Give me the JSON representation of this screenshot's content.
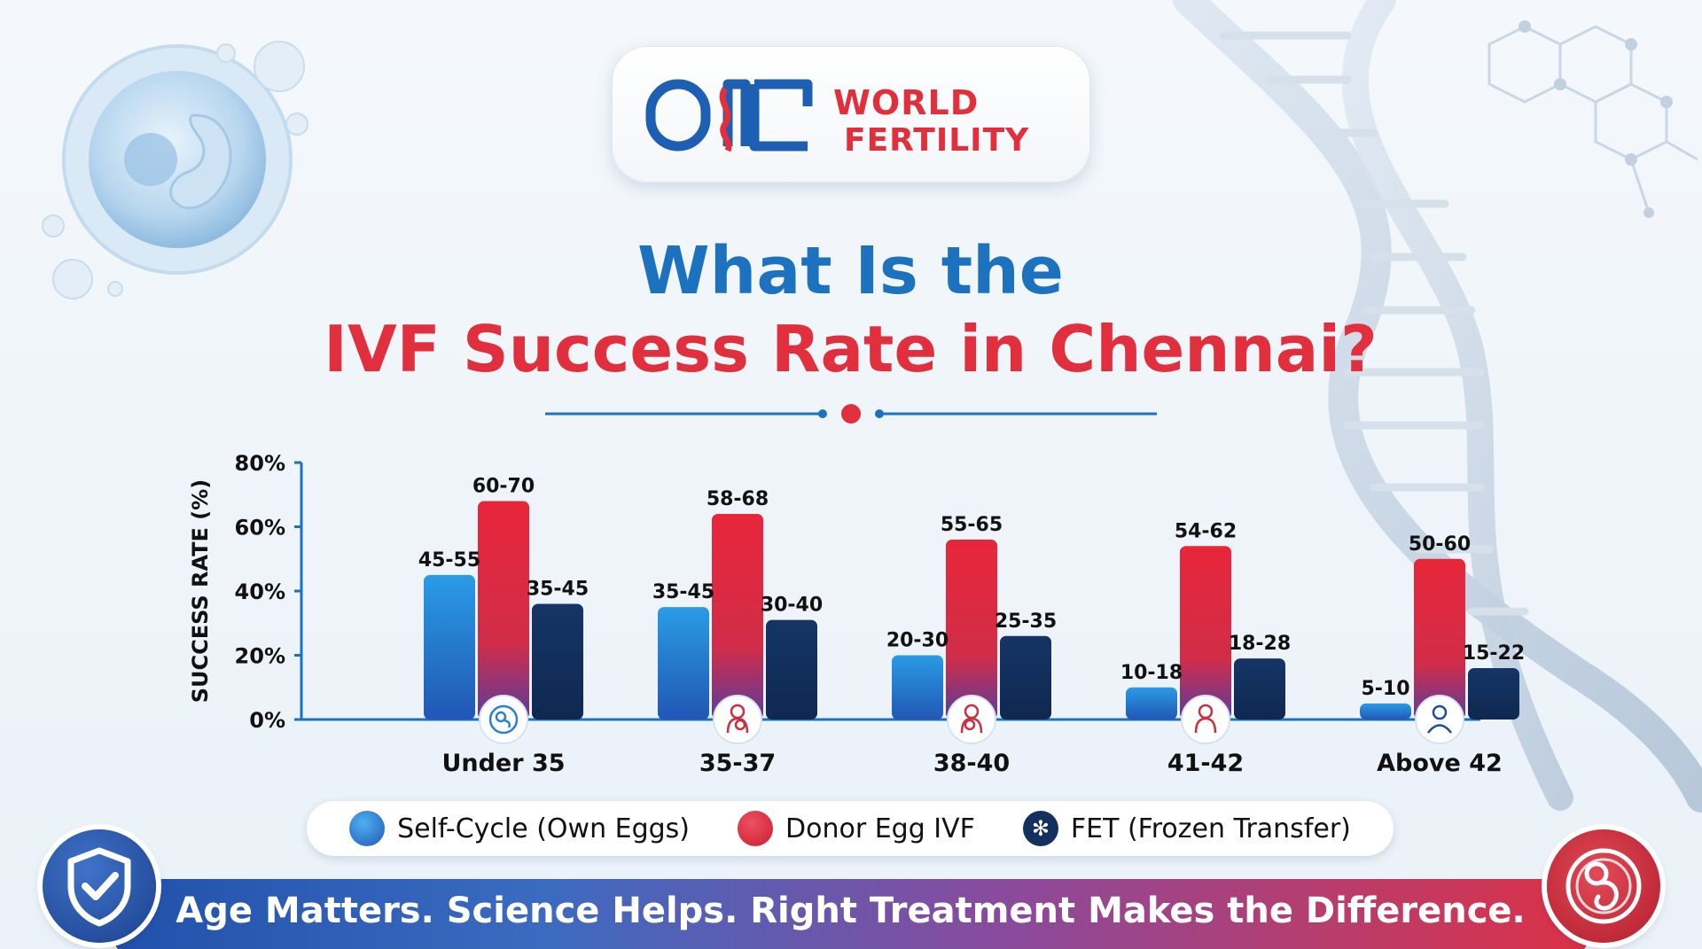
{
  "logo": {
    "line1": "WORLD",
    "line2": "FERTILITY"
  },
  "heading": {
    "line1": "What Is the",
    "line2": "IVF Success Rate in Chennai?"
  },
  "legend": [
    {
      "label": "Self-Cycle (Own Eggs)",
      "color": "#2a8ee0",
      "icon": "dot-icon"
    },
    {
      "label": "Donor Egg IVF",
      "color": "#e22a3a",
      "icon": "dot-icon"
    },
    {
      "label": "FET (Frozen Transfer)",
      "color": "#13305e",
      "icon": "snowflake-icon"
    }
  ],
  "footer": {
    "tagline": "Age Matters. Science Helps. Right Treatment Makes the Difference."
  },
  "colors": {
    "self_cycle": "#2a8ee0",
    "donor": "#e22a3a",
    "fet": "#13305e",
    "axis": "#1d72c0",
    "title_blue": "#1d72c0",
    "title_red": "#e22f3e"
  },
  "chart_data": {
    "type": "bar",
    "ylabel": "SUCCESS RATE (%)",
    "xlabel": "",
    "ylim": [
      0,
      80
    ],
    "yticks": [
      {
        "value": 0,
        "label": "0%"
      },
      {
        "value": 20,
        "label": "20%"
      },
      {
        "value": 40,
        "label": "40%"
      },
      {
        "value": 60,
        "label": "60%"
      },
      {
        "value": 80,
        "label": "80%"
      }
    ],
    "categories": [
      "Under 35",
      "35-37",
      "38-40",
      "41-42",
      "Above 42"
    ],
    "category_icons": [
      "embryo-icon",
      "pregnant-woman-icon",
      "woman-with-baby-icon",
      "woman-icon",
      "doctor-icon"
    ],
    "series": [
      {
        "name": "Self-Cycle (Own Eggs)",
        "values": [
          45,
          35,
          20,
          10,
          5
        ],
        "labels": [
          "45-55",
          "35-45",
          "20-30",
          "10-18",
          "5-10"
        ]
      },
      {
        "name": "Donor Egg IVF",
        "values": [
          68,
          64,
          56,
          54,
          50
        ],
        "labels": [
          "60-70",
          "58-68",
          "55-65",
          "54-62",
          "50-60"
        ]
      },
      {
        "name": "FET (Frozen Transfer)",
        "values": [
          36,
          31,
          26,
          19,
          16
        ],
        "labels": [
          "35-45",
          "30-40",
          "25-35",
          "18-28",
          "15-22"
        ]
      }
    ],
    "grid": false,
    "legend_position": "bottom"
  }
}
